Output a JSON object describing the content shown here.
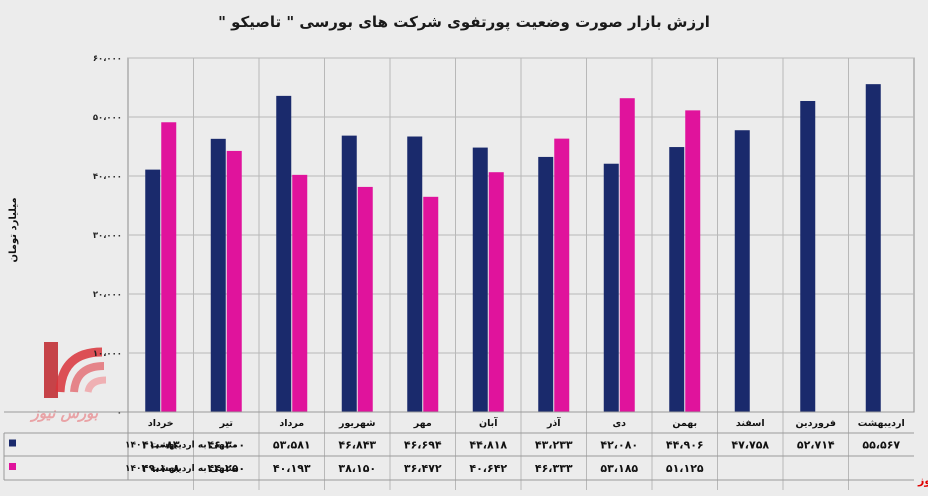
{
  "chart_data": {
    "type": "bar",
    "title": "ارزش بازار صورت وضعیت پورتفوی شرکت های بورسی \" تاصیکو \"",
    "ylabel": "میلیارد تومان",
    "ylim": [
      0,
      60000
    ],
    "yticks": [
      "۶۰،۰۰۰",
      "۵۰،۰۰۰",
      "۴۰،۰۰۰",
      "۳۰،۰۰۰",
      "۲۰،۰۰۰",
      "۱۰،۰۰۰",
      "۰"
    ],
    "ytick_values": [
      60000,
      50000,
      40000,
      30000,
      20000,
      10000,
      0
    ],
    "grid": true,
    "categories": [
      "خرداد",
      "تیر",
      "مرداد",
      "شهریور",
      "مهر",
      "آبان",
      "آذر",
      "دی",
      "بهمن",
      "اسفند",
      "فروردین",
      "اردیبهشت"
    ],
    "series": [
      {
        "name": "منتهی به اردیبهشت ۱۴۰۱",
        "color": "#1a2a6c",
        "values": [
          41083,
          46300,
          53581,
          46843,
          46694,
          44818,
          43233,
          42080,
          44906,
          47758,
          52714,
          55567
        ],
        "labels": [
          "۴۱،۰۸۳",
          "۴۶،۳۰۰",
          "۵۳،۵۸۱",
          "۴۶،۸۴۳",
          "۴۶،۶۹۴",
          "۴۴،۸۱۸",
          "۴۳،۲۳۳",
          "۴۲،۰۸۰",
          "۴۴،۹۰۶",
          "۴۷،۷۵۸",
          "۵۲،۷۱۴",
          "۵۵،۵۶۷"
        ]
      },
      {
        "name": "منتهی به اردیبهشت ۱۴۰۲",
        "color": "#e0139c",
        "values": [
          49108,
          44250,
          40193,
          38150,
          36472,
          40642,
          46333,
          53185,
          51125,
          null,
          null,
          null
        ],
        "labels": [
          "۴۹،۱۰۸",
          "۴۴،۲۵۰",
          "۴۰،۱۹۳",
          "۳۸،۱۵۰",
          "۳۶،۴۷۲",
          "۴۰،۶۴۲",
          "۴۶،۳۳۳",
          "۵۳،۱۸۵",
          "۵۱،۱۲۵",
          "",
          "",
          ""
        ]
      }
    ]
  },
  "branding": {
    "logo_text": "بورس نیوز",
    "logo_colors": [
      "#c0262c",
      "#e9a3a6"
    ],
    "footer_text": "بورس نیوز"
  }
}
